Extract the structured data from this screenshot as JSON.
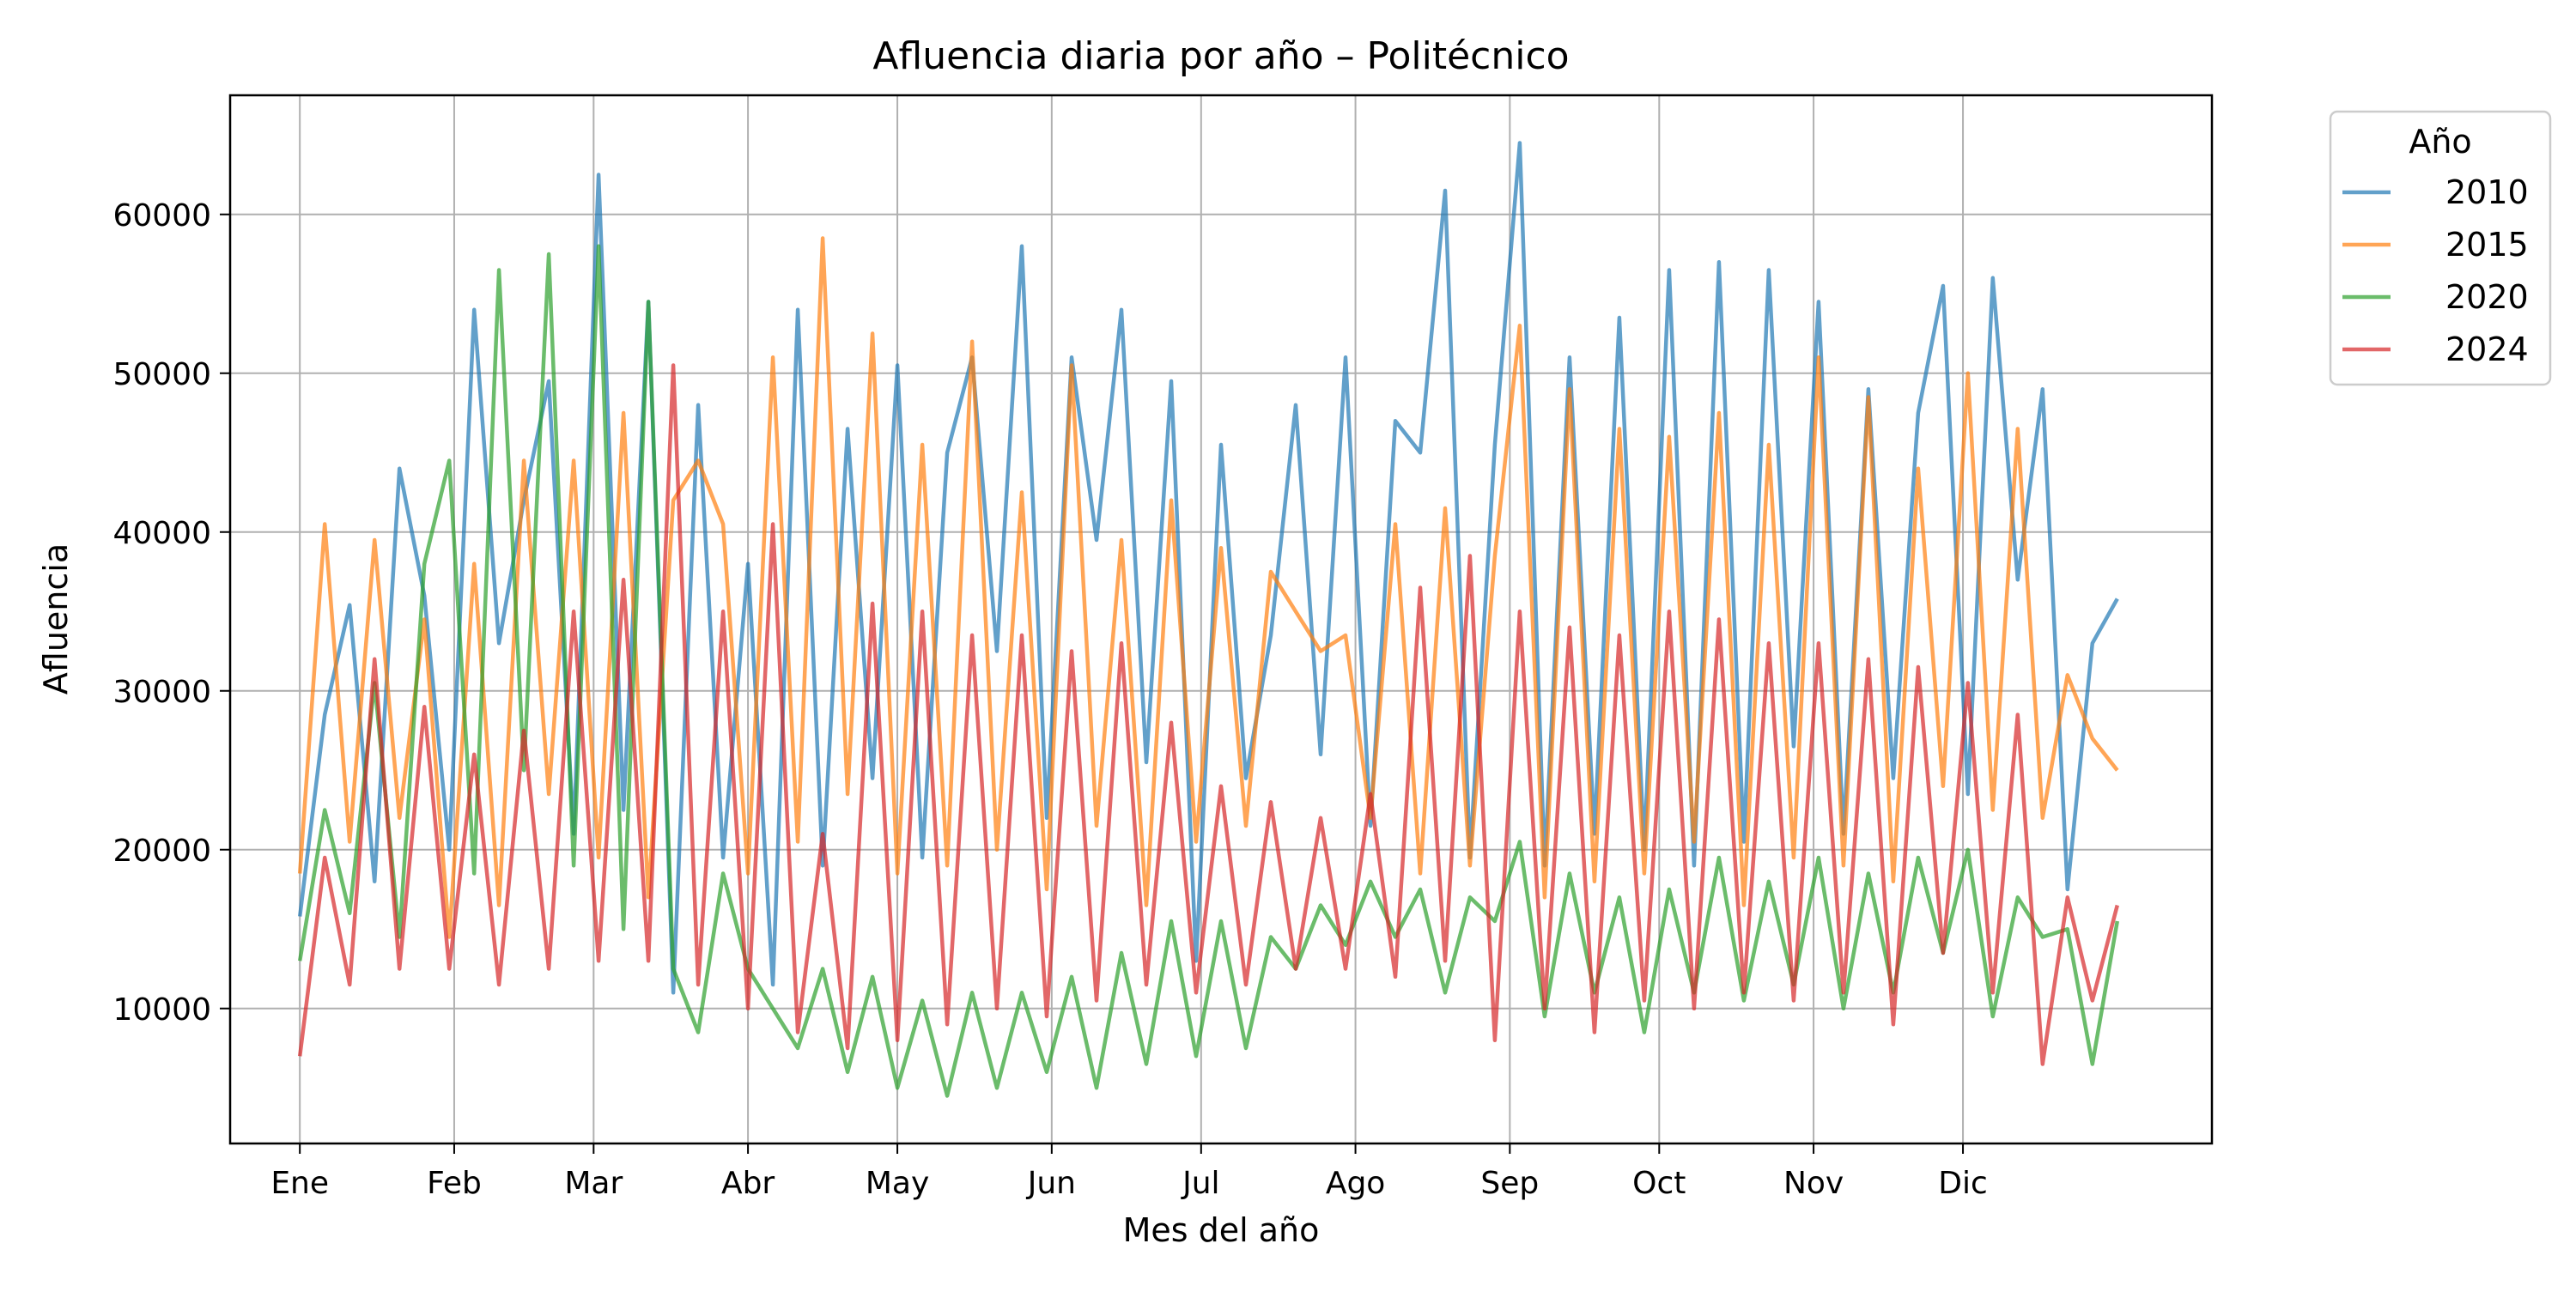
{
  "chart_data": {
    "type": "line",
    "title": "Afluencia diaria por año – Politécnico",
    "xlabel": "Mes del año",
    "ylabel": "Afluencia",
    "x_unit": "day_of_year",
    "xlim": [
      -13,
      385
    ],
    "ylim": [
      1500,
      67500
    ],
    "x_ticks": [
      {
        "value": 1,
        "label": "Ene"
      },
      {
        "value": 32,
        "label": "Feb"
      },
      {
        "value": 60,
        "label": "Mar"
      },
      {
        "value": 91,
        "label": "Abr"
      },
      {
        "value": 121,
        "label": "May"
      },
      {
        "value": 152,
        "label": "Jun"
      },
      {
        "value": 182,
        "label": "Jul"
      },
      {
        "value": 213,
        "label": "Ago"
      },
      {
        "value": 244,
        "label": "Sep"
      },
      {
        "value": 274,
        "label": "Oct"
      },
      {
        "value": 305,
        "label": "Nov"
      },
      {
        "value": 335,
        "label": "Dic"
      }
    ],
    "y_ticks": [
      10000,
      20000,
      30000,
      40000,
      50000,
      60000
    ],
    "grid": true,
    "legend": {
      "title": "Año",
      "placement": "upper-right-outside"
    },
    "x": [
      1,
      6,
      11,
      16,
      21,
      26,
      31,
      36,
      41,
      46,
      51,
      56,
      61,
      66,
      71,
      76,
      81,
      86,
      91,
      96,
      101,
      106,
      111,
      116,
      121,
      126,
      131,
      136,
      141,
      146,
      151,
      156,
      161,
      166,
      171,
      176,
      181,
      186,
      191,
      196,
      201,
      206,
      211,
      216,
      221,
      226,
      231,
      236,
      241,
      246,
      251,
      256,
      261,
      266,
      271,
      276,
      281,
      286,
      291,
      296,
      301,
      306,
      311,
      316,
      321,
      326,
      331,
      336,
      341,
      346,
      351,
      356,
      361,
      366
    ],
    "series": [
      {
        "name": "2010",
        "color": "#1f77b4",
        "values": [
          15800,
          28500,
          35400,
          18000,
          44000,
          36000,
          20000,
          54000,
          33000,
          42000,
          49500,
          21000,
          62500,
          22500,
          54500,
          11000,
          48000,
          19500,
          38000,
          11500,
          54000,
          19000,
          46500,
          24500,
          50500,
          19500,
          45000,
          51000,
          32500,
          58000,
          22000,
          51000,
          39500,
          54000,
          25500,
          49500,
          13000,
          45500,
          24500,
          33500,
          48000,
          26000,
          51000,
          21500,
          47000,
          45000,
          61500,
          19500,
          45500,
          64500,
          19000,
          51000,
          21000,
          53500,
          20000,
          56500,
          19000,
          57000,
          20500,
          56500,
          26500,
          54500,
          21000,
          49000,
          24500,
          47500,
          55500,
          23500,
          56000,
          37000,
          49000,
          17500,
          33000,
          35800
        ]
      },
      {
        "name": "2015",
        "color": "#ff7f0e",
        "values": [
          18500,
          40500,
          20500,
          39500,
          22000,
          34500,
          14500,
          38000,
          16500,
          44500,
          23500,
          44500,
          19500,
          47500,
          17000,
          42000,
          44500,
          40500,
          18500,
          51000,
          20500,
          58500,
          23500,
          52500,
          18500,
          45500,
          19000,
          52000,
          20000,
          42500,
          17500,
          50500,
          21500,
          39500,
          16500,
          42000,
          20500,
          39000,
          21500,
          37500,
          35000,
          32500,
          33500,
          22000,
          40500,
          18500,
          41500,
          19000,
          38500,
          53000,
          17000,
          49000,
          18000,
          46500,
          18500,
          46000,
          20500,
          47500,
          16500,
          45500,
          19500,
          51000,
          19000,
          48500,
          18000,
          44000,
          24000,
          50000,
          22500,
          46500,
          22000,
          31000,
          27000,
          25000
        ]
      },
      {
        "name": "2020",
        "color": "#2ca02c",
        "values": [
          13000,
          22500,
          16000,
          30500,
          14500,
          38000,
          44500,
          18500,
          56500,
          25000,
          57500,
          19000,
          58000,
          15000,
          54500,
          12500,
          8500,
          18500,
          12500,
          10000,
          7500,
          12500,
          6000,
          12000,
          5000,
          10500,
          4500,
          11000,
          5000,
          11000,
          6000,
          12000,
          5000,
          13500,
          6500,
          15500,
          7000,
          15500,
          7500,
          14500,
          12500,
          16500,
          14000,
          18000,
          14500,
          17500,
          11000,
          17000,
          15500,
          20500,
          9500,
          18500,
          11000,
          17000,
          8500,
          17500,
          11000,
          19500,
          10500,
          18000,
          11500,
          19500,
          10000,
          18500,
          11000,
          19500,
          13500,
          20000,
          9500,
          17000,
          14500,
          15000,
          6500,
          15500
        ]
      },
      {
        "name": "2024",
        "color": "#d62728",
        "values": [
          7000,
          19500,
          11500,
          32000,
          12500,
          29000,
          12500,
          26000,
          11500,
          27500,
          12500,
          35000,
          13000,
          37000,
          13000,
          50500,
          11500,
          35000,
          10000,
          40500,
          8500,
          21000,
          7500,
          35500,
          8000,
          35000,
          9000,
          33500,
          10000,
          33500,
          9500,
          32500,
          10500,
          33000,
          11500,
          28000,
          11000,
          24000,
          11500,
          23000,
          12500,
          22000,
          12500,
          23500,
          12000,
          36500,
          13000,
          38500,
          8000,
          35000,
          10000,
          34000,
          8500,
          33500,
          10500,
          35000,
          10000,
          34500,
          11000,
          33000,
          10500,
          33000,
          11000,
          32000,
          9000,
          31500,
          13500,
          30500,
          11000,
          28500,
          6500,
          17000,
          10500,
          16500
        ]
      }
    ]
  }
}
